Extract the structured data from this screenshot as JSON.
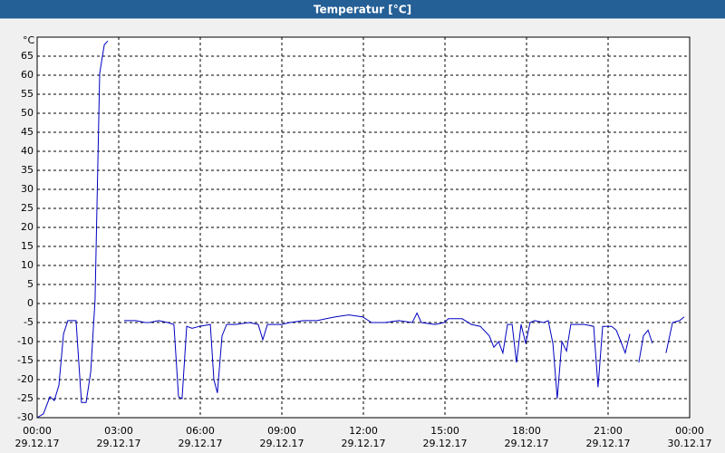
{
  "chart_data": {
    "type": "line",
    "title": "Temperatur [°C]",
    "y_label": "°C",
    "xlim": [
      0,
      24
    ],
    "ylim": [
      -30,
      70
    ],
    "xticks": [
      {
        "value": 0,
        "label": "00:00",
        "date": "29.12.17"
      },
      {
        "value": 3,
        "label": "03:00",
        "date": "29.12.17"
      },
      {
        "value": 6,
        "label": "06:00",
        "date": "29.12.17"
      },
      {
        "value": 9,
        "label": "09:00",
        "date": "29.12.17"
      },
      {
        "value": 12,
        "label": "12:00",
        "date": "29.12.17"
      },
      {
        "value": 15,
        "label": "15:00",
        "date": "29.12.17"
      },
      {
        "value": 18,
        "label": "18:00",
        "date": "29.12.17"
      },
      {
        "value": 21,
        "label": "21:00",
        "date": "29.12.17"
      },
      {
        "value": 24,
        "label": "00:00",
        "date": "30.12.17"
      }
    ],
    "yticks": [
      -30,
      -25,
      -20,
      -15,
      -10,
      -5,
      0,
      5,
      10,
      15,
      20,
      25,
      30,
      35,
      40,
      45,
      50,
      55,
      60,
      65
    ],
    "grid": true,
    "color": "#0000c0",
    "x": [
      0,
      0.23,
      0.47,
      0.63,
      0.8,
      0.97,
      1.13,
      1.43,
      1.63,
      1.8,
      1.97,
      2.13,
      2.3,
      2.47,
      2.6,
      2.8,
      3.2,
      3.63,
      3.97,
      4.13,
      4.47,
      4.8,
      5.03,
      5.2,
      5.33,
      5.5,
      5.7,
      5.97,
      6.37,
      6.5,
      6.63,
      6.8,
      6.97,
      7.3,
      7.8,
      8.13,
      8.3,
      8.47,
      8.97,
      9.3,
      9.8,
      10.3,
      10.63,
      10.97,
      11.47,
      11.97,
      12.3,
      12.8,
      13.3,
      13.8,
      13.97,
      14.13,
      14.63,
      14.97,
      15.13,
      15.63,
      15.97,
      16.3,
      16.63,
      16.8,
      16.97,
      17.13,
      17.3,
      17.47,
      17.63,
      17.8,
      17.97,
      18.13,
      18.3,
      18.63,
      18.8,
      18.97,
      19.13,
      19.3,
      19.47,
      19.63,
      20.13,
      20.47,
      20.63,
      20.8,
      21.13,
      21.3,
      21.47,
      21.63,
      21.8,
      21.95,
      22.13,
      22.3,
      22.47,
      22.63,
      22.8,
      23.13,
      23.37,
      23.63,
      23.8
    ],
    "values": [
      -30,
      -29,
      -24.5,
      -25.5,
      -21.5,
      -8,
      -4.5,
      -4.5,
      -26,
      -26,
      -18,
      1,
      60.5,
      68,
      69,
      null,
      -4.5,
      -4.5,
      -5,
      -5,
      -4.5,
      -5,
      -5.5,
      -24.5,
      -25,
      -6,
      -6.5,
      -6,
      -5.5,
      -20,
      -23.5,
      -8.5,
      -5.5,
      -5.5,
      -5,
      -5.5,
      -9.5,
      -5.5,
      -5.5,
      -5,
      -4.5,
      -4.5,
      -4,
      -3.5,
      -3,
      -3.5,
      -5,
      -5,
      -4.5,
      -5,
      -2.5,
      -5,
      -5.5,
      -5,
      -4,
      -4,
      -5.5,
      -6,
      -8.5,
      -11.5,
      -10,
      -13,
      -5.5,
      -5.5,
      -15.5,
      -5.5,
      -10.5,
      -5,
      -4.5,
      -5,
      -4.5,
      -10.5,
      -25,
      -10,
      -12.5,
      -5.5,
      -5.5,
      -6,
      -22,
      -6,
      -6,
      -7,
      -10,
      -13,
      -8,
      null,
      -15.5,
      -8.5,
      -7,
      -10.5,
      null,
      -13,
      -5,
      -4.5,
      -3.5
    ]
  }
}
